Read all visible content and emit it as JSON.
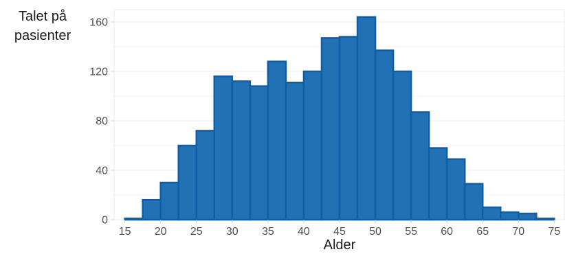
{
  "chart_data": {
    "type": "bar",
    "subtype": "histogram",
    "xlabel": "Alder",
    "ylabel_lines": [
      "Talet på",
      "pasienter"
    ],
    "bin_width": 2.5,
    "bin_starts": [
      15,
      17.5,
      20,
      22.5,
      25,
      27.5,
      30,
      32.5,
      35,
      37.5,
      40,
      42.5,
      45,
      47.5,
      50,
      52.5,
      55,
      57.5,
      60,
      62.5,
      65,
      67.5,
      70,
      72.5
    ],
    "values": [
      1,
      16,
      30,
      60,
      72,
      116,
      112,
      108,
      128,
      111,
      120,
      147,
      148,
      164,
      137,
      120,
      87,
      58,
      49,
      29,
      10,
      6,
      5,
      1
    ],
    "xlim": [
      13.5,
      76.5
    ],
    "ylim": [
      0,
      170
    ],
    "xticks": [
      15,
      20,
      25,
      30,
      35,
      40,
      45,
      50,
      55,
      60,
      65,
      70,
      75
    ],
    "yticks": [
      0,
      40,
      80,
      120,
      160
    ],
    "grid": true,
    "legend": "none",
    "colors": {
      "bar_fill": "#2271b5",
      "bar_edge": "#0e5fa5",
      "grid": "#ebebeb",
      "axis_text": "#4d4d4d",
      "label_text": "#1a1a1a"
    }
  }
}
